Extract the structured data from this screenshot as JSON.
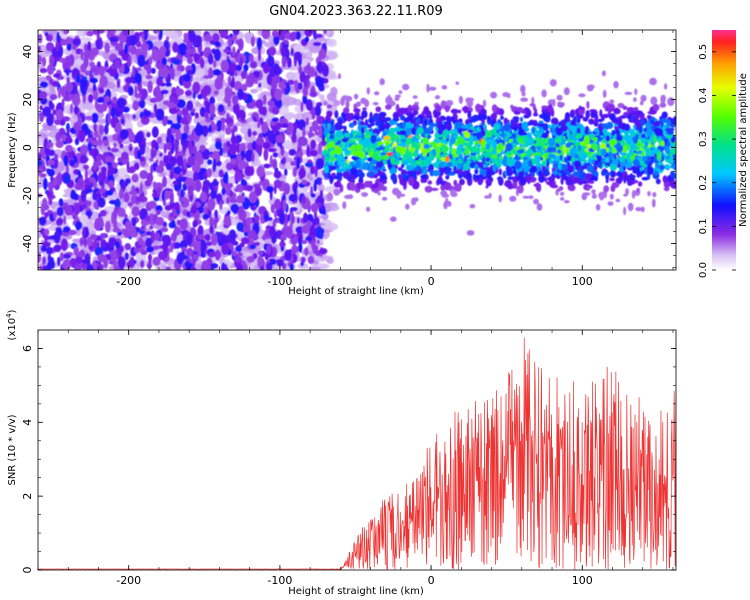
{
  "title": "GN04.2023.363.22.11.R09",
  "chart_data": [
    {
      "type": "heatmap",
      "xlabel": "Height of straight line (km)",
      "ylabel": "Frequency (Hz)",
      "xlim": [
        -260,
        162
      ],
      "ylim": [
        -51,
        49
      ],
      "xticks": [
        -200,
        -100,
        0,
        100
      ],
      "yticks": [
        -40,
        -20,
        0,
        20,
        40
      ],
      "colorbar": {
        "label": "Normalized spectral amplitude",
        "range": [
          0.0,
          0.55
        ],
        "ticks": [
          0.0,
          0.1,
          0.2,
          0.3,
          0.4,
          0.5
        ]
      },
      "noise_region_x": [
        -260,
        -70
      ],
      "signal_band": {
        "x_start": -70,
        "center_freq": 0,
        "half_width": 10,
        "peak_amplitude": 0.5
      }
    },
    {
      "type": "line",
      "xlabel": "Height of straight line (km)",
      "ylabel": "SNR (10 * v/v)",
      "multiplier": "(x10",
      "multiplier_exp": "4",
      "multiplier_close": ")",
      "xlim": [
        -260,
        162
      ],
      "ylim": [
        0,
        6.5
      ],
      "xticks": [
        -200,
        -100,
        0,
        100
      ],
      "yticks": [
        0,
        2,
        4,
        6
      ],
      "color": "#ee3333",
      "envelope": [
        {
          "x": -260,
          "y": 0.02
        },
        {
          "x": -60,
          "y": 0.02
        },
        {
          "x": -45,
          "y": 1.2
        },
        {
          "x": -30,
          "y": 2.0
        },
        {
          "x": -10,
          "y": 2.5
        },
        {
          "x": 0,
          "y": 3.6
        },
        {
          "x": 20,
          "y": 4.5
        },
        {
          "x": 40,
          "y": 4.9
        },
        {
          "x": 58,
          "y": 6.5
        },
        {
          "x": 80,
          "y": 5.4
        },
        {
          "x": 100,
          "y": 5.2
        },
        {
          "x": 115,
          "y": 5.8
        },
        {
          "x": 130,
          "y": 5.0
        },
        {
          "x": 150,
          "y": 4.3
        },
        {
          "x": 162,
          "y": 5.0
        }
      ]
    }
  ]
}
